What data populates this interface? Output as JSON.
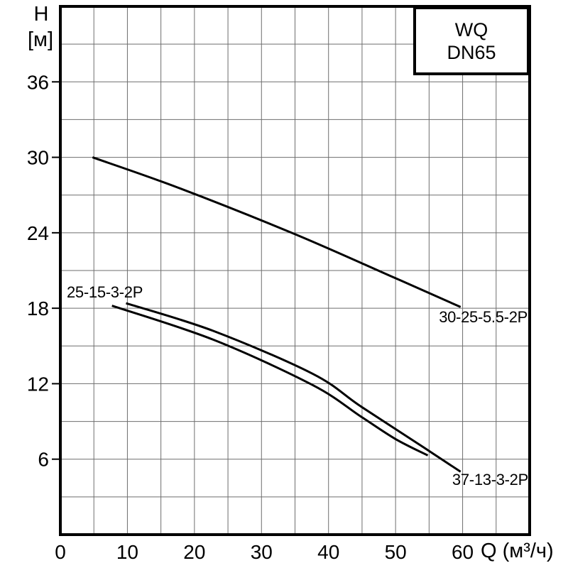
{
  "page": {
    "background": "#ffffff"
  },
  "legend": {
    "line1": "WQ",
    "line2": "DN65"
  },
  "axis": {
    "y_title": "H",
    "y_unit": "[м]",
    "x_title": "Q (м³/ч)"
  },
  "chart_data": {
    "type": "line",
    "title": "WQ DN65",
    "xlabel": "Q (м³/ч)",
    "ylabel": "H [м]",
    "xlim": [
      0,
      70
    ],
    "ylim": [
      0,
      42
    ],
    "x_ticks": [
      0,
      10,
      20,
      30,
      40,
      50,
      60
    ],
    "y_ticks": [
      6,
      12,
      18,
      24,
      30,
      36
    ],
    "x_grid_step": 5,
    "y_grid_step": 3,
    "grid": true,
    "legend_position": "top-right",
    "series": [
      {
        "name": "30-25-5.5-2P",
        "points": [
          [
            4.8,
            30.0
          ],
          [
            17.5,
            27.6
          ],
          [
            34.5,
            24.0
          ],
          [
            49.1,
            20.6
          ],
          [
            59.7,
            18.1
          ]
        ]
      },
      {
        "name": "25-15-3-2P",
        "points": [
          [
            7.7,
            18.2
          ],
          [
            22.8,
            15.5
          ],
          [
            37.6,
            11.9
          ],
          [
            44.8,
            9.4
          ],
          [
            50.0,
            7.6
          ],
          [
            54.8,
            6.3
          ]
        ]
      },
      {
        "name": "37-13-3-2P",
        "points": [
          [
            9.8,
            18.4
          ],
          [
            22.8,
            16.2
          ],
          [
            37.6,
            12.8
          ],
          [
            44.8,
            10.2
          ],
          [
            54.3,
            6.9
          ],
          [
            59.7,
            5.0
          ]
        ]
      }
    ],
    "colors": {
      "curve": "#000000",
      "grid": "#6e6e6e",
      "frame": "#000000",
      "tick_text": "#000000"
    }
  }
}
